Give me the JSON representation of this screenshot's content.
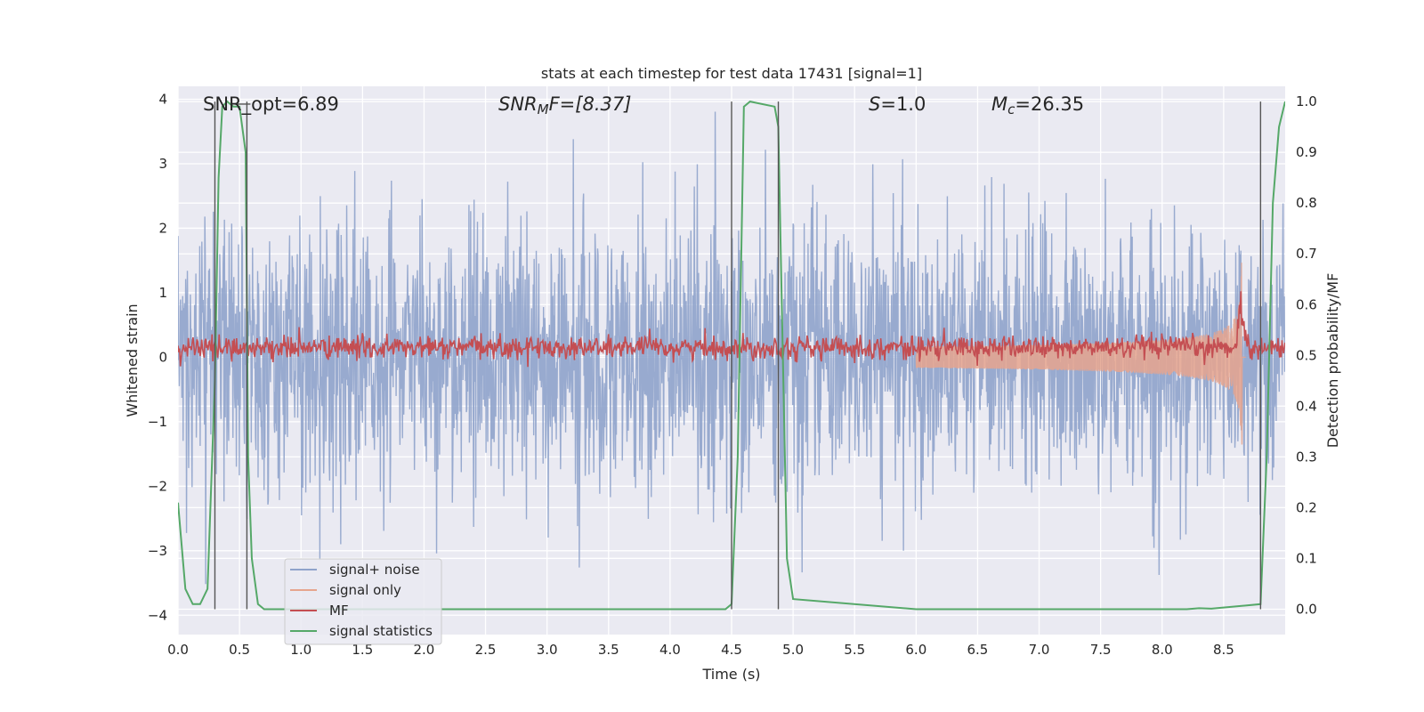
{
  "chart_data": {
    "type": "line",
    "title": "stats at each timestep for test data 17431 [signal=1]",
    "xlabel": "Time (s)",
    "ylabel_left": "Whitened strain",
    "ylabel_right": "Detection probability/MF",
    "xlim": [
      0,
      9
    ],
    "ylim_left": [
      -4.3,
      4.2
    ],
    "ylim_right": [
      -0.05,
      1.03
    ],
    "x_ticks": [
      0,
      0.5,
      1,
      1.5,
      2,
      2.5,
      3,
      3.5,
      4,
      4.5,
      5,
      5.5,
      6,
      6.5,
      7,
      7.5,
      8,
      8.5
    ],
    "x_tick_labels": [
      "0.0",
      "0.5",
      "1.0",
      "1.5",
      "2.0",
      "2.5",
      "3.0",
      "3.5",
      "4.0",
      "4.5",
      "5.0",
      "5.5",
      "6.0",
      "6.5",
      "7.0",
      "7.5",
      "8.0",
      "8.5"
    ],
    "y_ticks_left": [
      -4,
      -3,
      -2,
      -1,
      0,
      1,
      2,
      3,
      4
    ],
    "y_tick_labels_left": [
      "−4",
      "−3",
      "−2",
      "−1",
      "0",
      "1",
      "2",
      "3",
      "4"
    ],
    "y_ticks_right": [
      0,
      0.1,
      0.2,
      0.3,
      0.4,
      0.5,
      0.6,
      0.7,
      0.8,
      0.9,
      1.0
    ],
    "y_tick_labels_right": [
      "0.0",
      "0.1",
      "0.2",
      "0.3",
      "0.4",
      "0.5",
      "0.6",
      "0.7",
      "0.8",
      "0.9",
      "1.0"
    ],
    "grid": true,
    "legend_position": "lower-left",
    "annotations": {
      "snr_opt": "SNR_opt=6.89",
      "snr_mf_base": "SNR",
      "snr_mf_sub": "M",
      "snr_mf_rest": "F=[8.37]",
      "s_var": "S",
      "s_rest": "=1.0",
      "mc_var": "M",
      "mc_sub": "c",
      "mc_rest": "=26.35"
    },
    "series": [
      {
        "name": "signal+ noise",
        "color": "#8fa3cb",
        "axis": "left",
        "approx_range": [
          -2.0,
          1.9
        ],
        "peak_range": [
          -3.6,
          3.9
        ]
      },
      {
        "name": "signal only",
        "color": "#e6a58e",
        "axis": "left",
        "chirp_end_time": 8.65,
        "peak": 1.6
      },
      {
        "name": "MF",
        "color": "#c44e52",
        "axis": "left",
        "mean": 0.15,
        "peak_time": 8.64,
        "peak": 1.0
      },
      {
        "name": "signal statistics",
        "color": "#55a868",
        "axis": "right",
        "x": [
          0.0,
          0.06,
          0.12,
          0.18,
          0.24,
          0.3,
          0.33,
          0.36,
          0.4,
          0.45,
          0.5,
          0.55,
          0.57,
          0.6,
          0.65,
          0.7,
          0.8,
          1.0,
          2.0,
          2.2,
          3.0,
          4.0,
          4.45,
          4.5,
          4.55,
          4.6,
          4.65,
          4.85,
          4.88,
          4.9,
          4.95,
          5.0,
          6.0,
          7.0,
          8.0,
          8.2,
          8.3,
          8.4,
          8.8,
          8.85,
          8.9,
          8.95,
          9.0
        ],
        "y": [
          0.21,
          0.04,
          0.01,
          0.01,
          0.04,
          0.45,
          0.85,
          0.99,
          1.0,
          0.99,
          0.99,
          0.9,
          0.3,
          0.1,
          0.01,
          0.0,
          0.0,
          0.0,
          0.0,
          0.0,
          0.0,
          0.0,
          0.0,
          0.01,
          0.3,
          0.99,
          1.0,
          0.99,
          0.95,
          0.7,
          0.1,
          0.02,
          0.0,
          0.0,
          0.0,
          0.0,
          0.002,
          0.001,
          0.01,
          0.3,
          0.8,
          0.95,
          1.0
        ]
      }
    ],
    "vertical_markers": [
      0.3,
      0.56,
      4.5,
      4.88,
      8.8
    ]
  }
}
